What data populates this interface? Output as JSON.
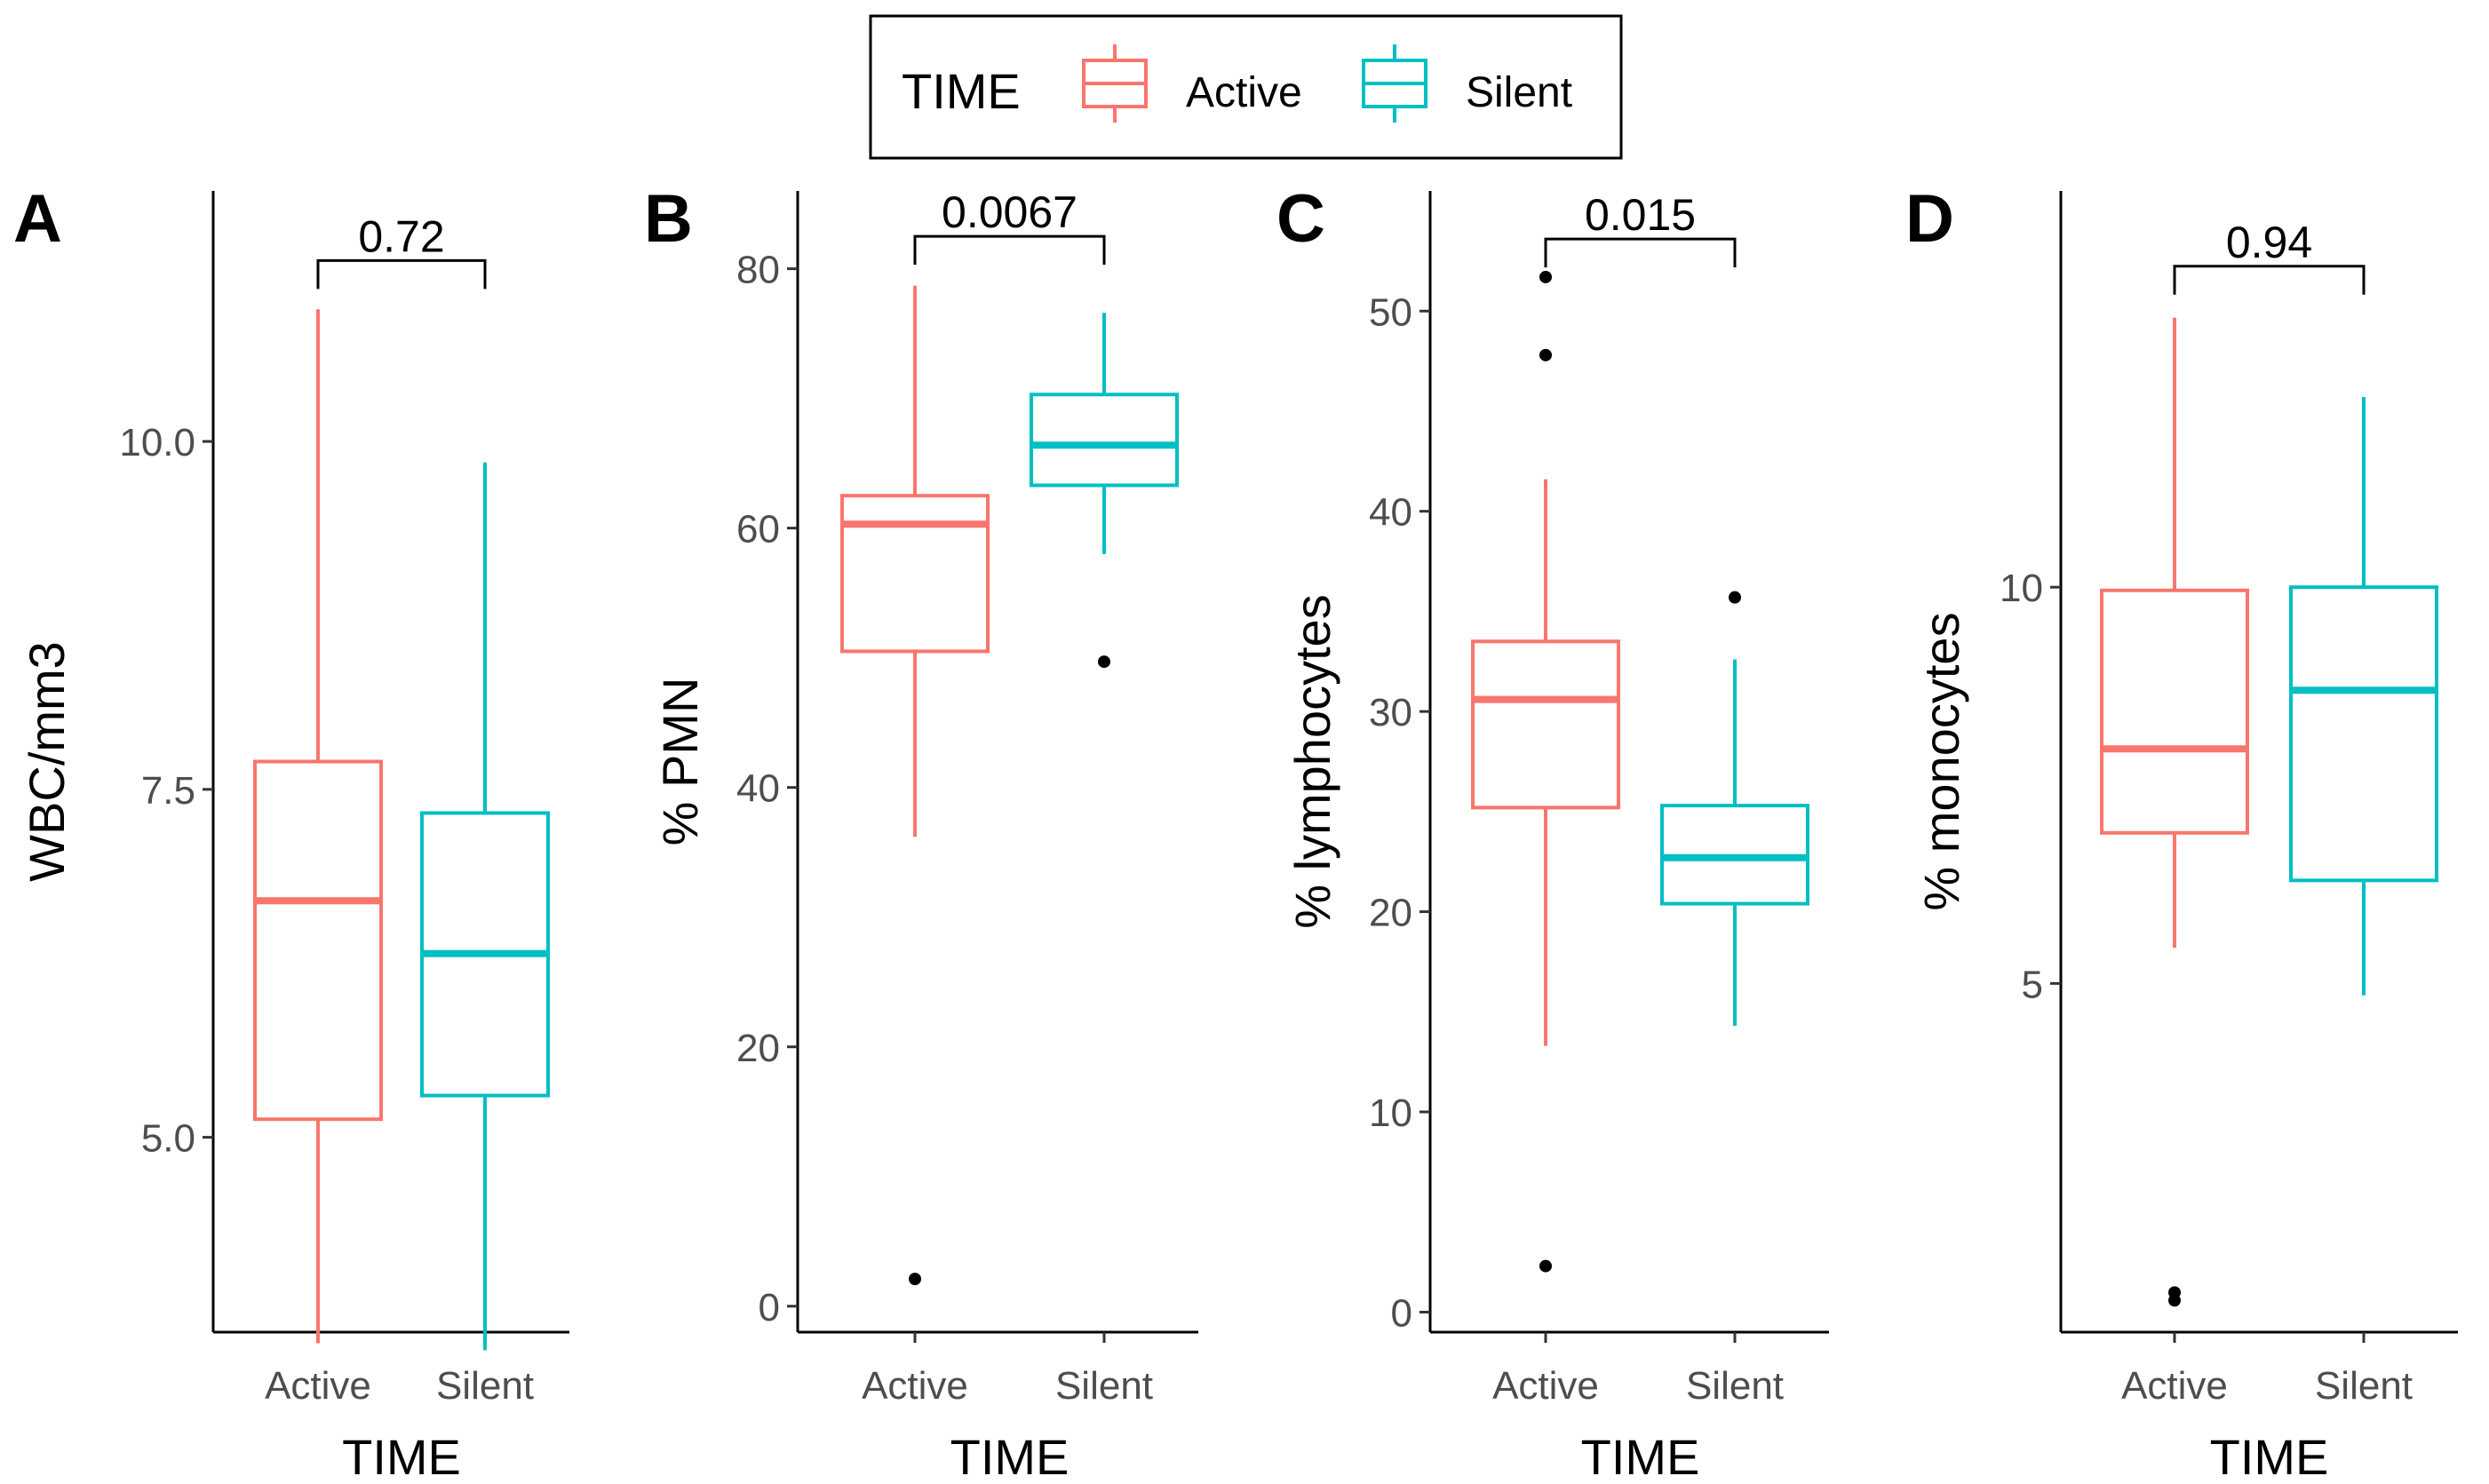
{
  "chart_data": {
    "type": "boxplot",
    "legend": {
      "title": "TIME",
      "position": "top",
      "entries": [
        {
          "label": "Active",
          "color": "#F8766D"
        },
        {
          "label": "Silent",
          "color": "#00BFC4"
        }
      ]
    },
    "panels": [
      {
        "tag": "A",
        "xlabel": "TIME",
        "ylabel": "WBC/mm3",
        "ylim": [
          3.6,
          11.8
        ],
        "ticks": [
          5.0,
          7.5,
          10.0
        ],
        "tick_labels": [
          "5.0",
          "7.5",
          "10.0"
        ],
        "categories": [
          "Active",
          "Silent"
        ],
        "pvalue": "0.72",
        "bracket_top": 11.3,
        "boxes": [
          {
            "q1": 5.13,
            "median": 6.7,
            "q3": 7.7,
            "whisker_low": 3.52,
            "whisker_high": 10.95,
            "outliers": []
          },
          {
            "q1": 5.3,
            "median": 6.32,
            "q3": 7.33,
            "whisker_low": 3.47,
            "whisker_high": 9.85,
            "outliers": []
          }
        ]
      },
      {
        "tag": "B",
        "xlabel": "TIME",
        "ylabel": "% PMN",
        "ylim": [
          -2,
          86
        ],
        "ticks": [
          0,
          20,
          40,
          60,
          80
        ],
        "tick_labels": [
          "0",
          "20",
          "40",
          "60",
          "80"
        ],
        "categories": [
          "Active",
          "Silent"
        ],
        "pvalue": "0.0067",
        "bracket_top": 82.5,
        "boxes": [
          {
            "q1": 50.5,
            "median": 60.3,
            "q3": 62.5,
            "whisker_low": 36.2,
            "whisker_high": 78.7,
            "outliers": [
              2.1
            ]
          },
          {
            "q1": 63.3,
            "median": 66.4,
            "q3": 70.3,
            "whisker_low": 58.0,
            "whisker_high": 76.6,
            "outliers": [
              49.7
            ]
          }
        ]
      },
      {
        "tag": "C",
        "xlabel": "TIME",
        "ylabel": "% lymphocytes",
        "ylim": [
          -1,
          56
        ],
        "ticks": [
          0,
          10,
          20,
          30,
          40,
          50
        ],
        "tick_labels": [
          "0",
          "10",
          "20",
          "30",
          "40",
          "50"
        ],
        "categories": [
          "Active",
          "Silent"
        ],
        "pvalue": "0.015",
        "bracket_top": 53.6,
        "boxes": [
          {
            "q1": 25.2,
            "median": 30.6,
            "q3": 33.5,
            "whisker_low": 13.3,
            "whisker_high": 41.6,
            "outliers": [
              2.3,
              47.8,
              51.7
            ]
          },
          {
            "q1": 20.4,
            "median": 22.7,
            "q3": 25.3,
            "whisker_low": 14.3,
            "whisker_high": 32.6,
            "outliers": [
              35.7
            ]
          }
        ]
      },
      {
        "tag": "D",
        "xlabel": "TIME",
        "ylabel": "% monocytes",
        "ylim": [
          0.6,
          15.0
        ],
        "ticks": [
          5,
          10
        ],
        "tick_labels": [
          "5",
          "10"
        ],
        "categories": [
          "Active",
          "Silent"
        ],
        "pvalue": "0.94",
        "bracket_top": 14.05,
        "boxes": [
          {
            "q1": 6.9,
            "median": 7.96,
            "q3": 9.96,
            "whisker_low": 5.45,
            "whisker_high": 13.4,
            "outliers": [
              1.0,
              1.1
            ]
          },
          {
            "q1": 6.3,
            "median": 8.7,
            "q3": 10.0,
            "whisker_low": 4.85,
            "whisker_high": 12.4,
            "outliers": []
          }
        ]
      }
    ]
  }
}
